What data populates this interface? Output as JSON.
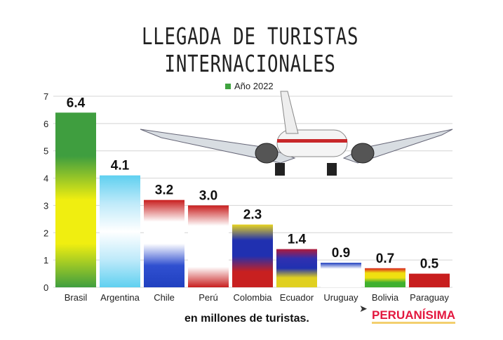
{
  "title": "LLEGADA DE TURISTAS INTERNACIONALES",
  "subtitle": "en millones de turistas.",
  "logo": "PERUANÍSIMA",
  "chart_data": {
    "type": "bar",
    "title": "LLEGADA DE TURISTAS INTERNACIONALES",
    "xlabel": "",
    "ylabel": "en millones de turistas.",
    "ylim": [
      0,
      7
    ],
    "yticks": [
      0,
      1,
      2,
      3,
      4,
      5,
      6,
      7
    ],
    "grid": true,
    "legend": {
      "label": "Año 2022",
      "color": "#3fa33f",
      "placement": "top-center"
    },
    "categories": [
      "Brasil",
      "Argentina",
      "Chile",
      "Perú",
      "Colombia",
      "Ecuador",
      "Uruguay",
      "Bolivia",
      "Paraguay"
    ],
    "values": [
      6.4,
      4.1,
      3.2,
      3.0,
      2.3,
      1.4,
      0.9,
      0.7,
      0.5
    ],
    "value_labels": [
      "6.4",
      "4.1",
      "3.2",
      "3.0",
      "2.3",
      "1.4",
      "0.9",
      "0.7",
      "0.5"
    ],
    "bar_colors": [
      [
        "#3f9e3f",
        "#3f9e3f",
        "#f0ee10",
        "#f0ee10",
        "#3f9e3f"
      ],
      [
        "#5fd0f0",
        "#bfeafa",
        "#ffffff",
        "#bfeafa",
        "#5fd0f0"
      ],
      [
        "#c81e1e",
        "#ffffff",
        "#ffffff",
        "#3050d0",
        "#2040c0"
      ],
      [
        "#c81e1e",
        "#ffffff",
        "#ffffff",
        "#ffffff",
        "#c81e1e"
      ],
      [
        "#e8d420",
        "#2030b0",
        "#2030b0",
        "#c82020",
        "#c82020"
      ],
      [
        "#b01a3a",
        "#3030b0",
        "#2030b0",
        "#e0d020",
        "#e0d020"
      ],
      [
        "#2040c0",
        "#ffffff",
        "#ffffff",
        "#ffffff",
        "#ffffff"
      ],
      [
        "#d82020",
        "#f0e010",
        "#f0e010",
        "#40b030",
        "#40b030"
      ],
      [
        "#c81e1e",
        "#c81e1e",
        "#c81e1e",
        "#c81e1e",
        "#c81e1e"
      ]
    ]
  }
}
